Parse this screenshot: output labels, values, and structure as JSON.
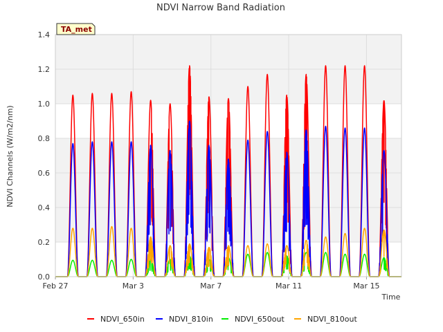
{
  "chart_data": {
    "type": "line",
    "title": "NDVI Narrow Band Radiation",
    "xlabel": "Time",
    "ylabel": "NDVI Channels (W/m2/nm)",
    "ylim": [
      0,
      1.4
    ],
    "xlim": [
      0,
      17.8
    ],
    "grid": true,
    "legend_position": "bottom",
    "badge": "TA_met",
    "y_ticks": [
      0.0,
      0.2,
      0.4,
      0.6,
      0.8,
      1.0,
      1.2,
      1.4
    ],
    "y_tick_labels": [
      "0.0",
      "0.2",
      "0.4",
      "0.6",
      "0.8",
      "1.0",
      "1.2",
      "1.4"
    ],
    "x_ticks": [
      0,
      4,
      8,
      12,
      16
    ],
    "x_tick_labels": [
      "Feb 27",
      "Mar 3",
      "Mar 7",
      "Mar 11",
      "Mar 15"
    ],
    "daily_peaks": {
      "day_offset": [
        0.9,
        1.9,
        2.9,
        3.9,
        4.9,
        5.9,
        6.9,
        7.9,
        8.9,
        9.9,
        10.9,
        11.9,
        12.9,
        13.9,
        14.9,
        15.9,
        16.9
      ],
      "cloudy": [
        false,
        false,
        false,
        false,
        true,
        true,
        true,
        true,
        true,
        false,
        false,
        true,
        true,
        false,
        false,
        false,
        true
      ]
    },
    "series": [
      {
        "name": "NDVI_650in",
        "color": "#ff0000",
        "peaks": [
          1.05,
          1.06,
          1.06,
          1.07,
          1.02,
          1.0,
          1.22,
          1.04,
          1.03,
          1.1,
          1.17,
          1.05,
          1.17,
          1.22,
          1.22,
          1.22,
          1.02
        ]
      },
      {
        "name": "NDVI_810in",
        "color": "#0000ff",
        "peaks": [
          0.77,
          0.78,
          0.78,
          0.78,
          0.76,
          0.73,
          0.9,
          0.76,
          0.68,
          0.79,
          0.84,
          0.72,
          0.85,
          0.87,
          0.86,
          0.86,
          0.73
        ]
      },
      {
        "name": "NDVI_650out",
        "color": "#00ee00",
        "peaks": [
          0.095,
          0.095,
          0.095,
          0.1,
          0.1,
          0.1,
          0.12,
          0.1,
          0.11,
          0.13,
          0.14,
          0.12,
          0.14,
          0.14,
          0.13,
          0.13,
          0.11
        ]
      },
      {
        "name": "NDVI_810out",
        "color": "#ffa500",
        "peaks": [
          0.28,
          0.28,
          0.29,
          0.28,
          0.23,
          0.18,
          0.19,
          0.17,
          0.18,
          0.18,
          0.19,
          0.18,
          0.21,
          0.23,
          0.25,
          0.28,
          0.27
        ]
      }
    ]
  }
}
